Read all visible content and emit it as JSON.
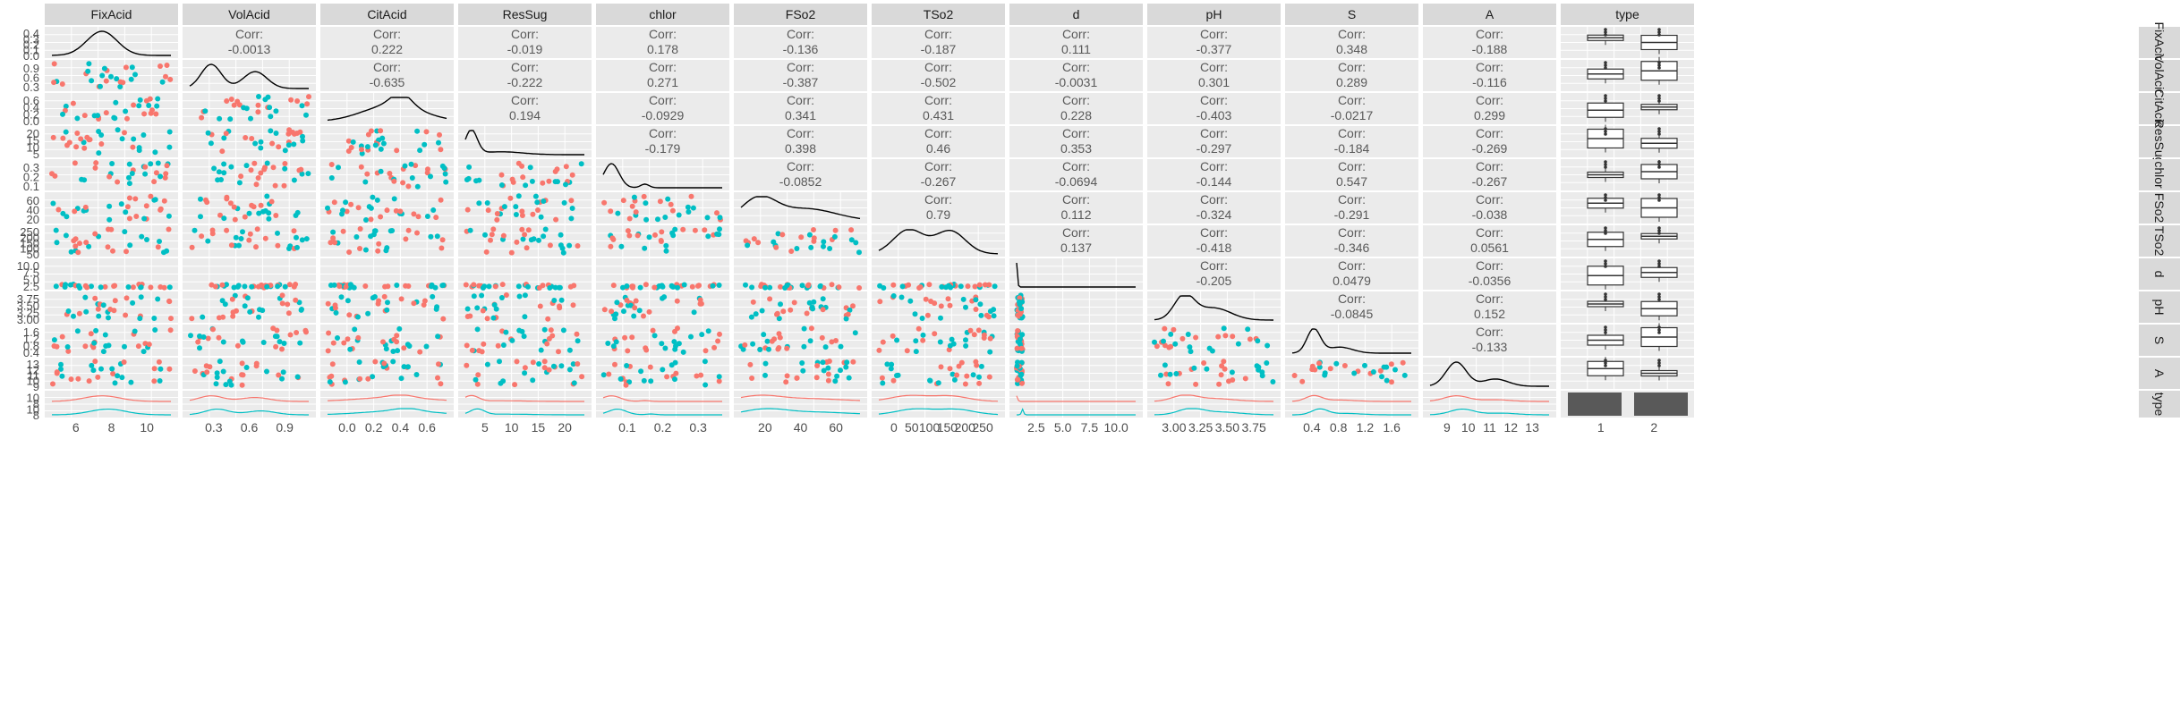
{
  "chart_data": {
    "type": "scatter-matrix",
    "title": "",
    "variables": [
      "FixAcid",
      "VolAcid",
      "CitAcid",
      "ResSug",
      "chlor",
      "FSo2",
      "TSo2",
      "d",
      "pH",
      "S",
      "A"
    ],
    "right_strip_labels": [
      "FixAcid",
      "VolAcid",
      "CitAcid",
      "ResSug",
      "chlor",
      "FSo2",
      "TSo2",
      "d",
      "pH",
      "S",
      "A",
      "type"
    ],
    "extra_column_label": "type",
    "type_levels": [
      "1",
      "2"
    ],
    "group_colors": {
      "1": "#F8766D",
      "2": "#00BFC4"
    },
    "corr_label": "Corr:",
    "correlations": [
      [
        "",
        "-0.0013",
        "0.222",
        "-0.019",
        "0.178",
        "-0.136",
        "-0.187",
        "0.111",
        "-0.377",
        "0.348",
        "-0.188"
      ],
      [
        "",
        "",
        "-0.635",
        "-0.222",
        "0.271",
        "-0.387",
        "-0.502",
        "-0.0031",
        "0.301",
        "0.289",
        "-0.116"
      ],
      [
        "",
        "",
        "",
        "0.194",
        "-0.0929",
        "0.341",
        "0.431",
        "0.228",
        "-0.403",
        "-0.0217",
        "0.299"
      ],
      [
        "",
        "",
        "",
        "",
        "-0.179",
        "0.398",
        "0.46",
        "0.353",
        "-0.297",
        "-0.184",
        "-0.269"
      ],
      [
        "",
        "",
        "",
        "",
        "",
        "-0.0852",
        "-0.267",
        "-0.0694",
        "-0.144",
        "0.547",
        "-0.267"
      ],
      [
        "",
        "",
        "",
        "",
        "",
        "",
        "0.79",
        "0.112",
        "-0.324",
        "-0.291",
        "-0.038"
      ],
      [
        "",
        "",
        "",
        "",
        "",
        "",
        "",
        "0.137",
        "-0.418",
        "-0.346",
        "0.0561"
      ],
      [
        "",
        "",
        "",
        "",
        "",
        "",
        "",
        "",
        "-0.205",
        "0.0479",
        "-0.0356"
      ],
      [
        "",
        "",
        "",
        "",
        "",
        "",
        "",
        "",
        "",
        "-0.0845",
        "0.152"
      ],
      [
        "",
        "",
        "",
        "",
        "",
        "",
        "",
        "",
        "",
        "",
        "-0.133"
      ]
    ],
    "x_axis_ticks": [
      [
        "6",
        "8",
        "10"
      ],
      [
        "0.3",
        "0.6",
        "0.9"
      ],
      [
        "0.0",
        "0.2",
        "0.4",
        "0.6"
      ],
      [
        "5",
        "10",
        "15",
        "20"
      ],
      [
        "0.1",
        "0.2",
        "0.3"
      ],
      [
        "20",
        "40",
        "60"
      ],
      [
        "0",
        "50",
        "100",
        "150",
        "200",
        "250"
      ],
      [
        "2.5",
        "5.0",
        "7.5",
        "10.0"
      ],
      [
        "3.00",
        "3.25",
        "3.50",
        "3.75"
      ],
      [
        "0.4",
        "0.8",
        "1.2",
        "1.6"
      ],
      [
        "9",
        "10",
        "11",
        "12",
        "13"
      ],
      [
        "1",
        "2"
      ]
    ],
    "y_axis_ticks": [
      [
        "0.4",
        "0.3",
        "0.2",
        "0.1",
        "0.0"
      ],
      [
        "0.9",
        "0.6",
        "0.3"
      ],
      [
        "0.6",
        "0.4",
        "0.2",
        "0.0"
      ],
      [
        "20",
        "15",
        "10",
        "5"
      ],
      [
        "0.3",
        "0.2",
        "0.1"
      ],
      [
        "60",
        "40",
        "20"
      ],
      [
        "250",
        "200",
        "150",
        "100",
        "50"
      ],
      [
        "10.0",
        "7.5",
        "5.0",
        "2.5"
      ],
      [
        "3.75",
        "3.50",
        "3.25",
        "3.00"
      ],
      [
        "1.6",
        "1.2",
        "0.8",
        "0.4"
      ],
      [
        "13",
        "12",
        "11",
        "10",
        "9"
      ],
      [
        "10",
        "8",
        "10",
        "8"
      ]
    ]
  }
}
